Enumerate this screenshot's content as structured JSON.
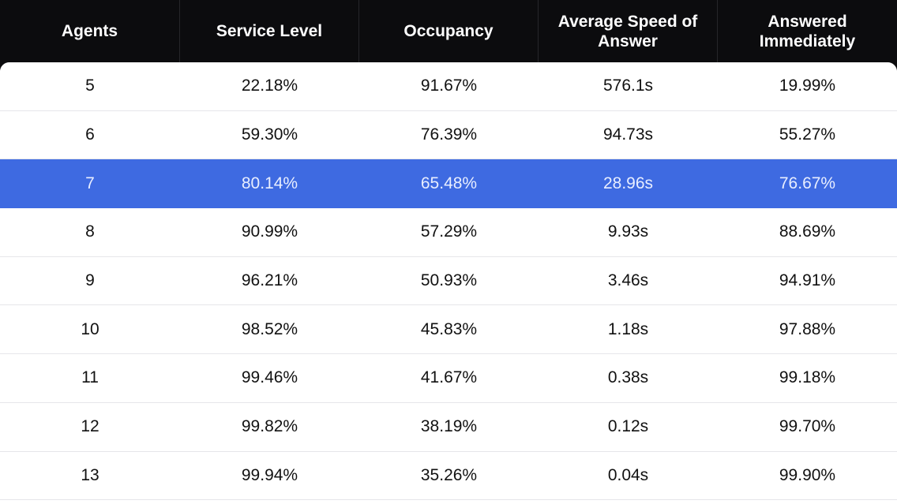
{
  "table": {
    "columns": [
      "Agents",
      "Service Level",
      "Occupancy",
      "Average Speed of Answer",
      "Answered Immediately"
    ],
    "highlighted_row_index": 2,
    "highlight_color": "#3e6ae1",
    "header_background": "#0c0c0e",
    "rows": [
      [
        "5",
        "22.18%",
        "91.67%",
        "576.1s",
        "19.99%"
      ],
      [
        "6",
        "59.30%",
        "76.39%",
        "94.73s",
        "55.27%"
      ],
      [
        "7",
        "80.14%",
        "65.48%",
        "28.96s",
        "76.67%"
      ],
      [
        "8",
        "90.99%",
        "57.29%",
        "9.93s",
        "88.69%"
      ],
      [
        "9",
        "96.21%",
        "50.93%",
        "3.46s",
        "94.91%"
      ],
      [
        "10",
        "98.52%",
        "45.83%",
        "1.18s",
        "97.88%"
      ],
      [
        "11",
        "99.46%",
        "41.67%",
        "0.38s",
        "99.18%"
      ],
      [
        "12",
        "99.82%",
        "38.19%",
        "0.12s",
        "99.70%"
      ],
      [
        "13",
        "99.94%",
        "35.26%",
        "0.04s",
        "99.90%"
      ]
    ]
  }
}
